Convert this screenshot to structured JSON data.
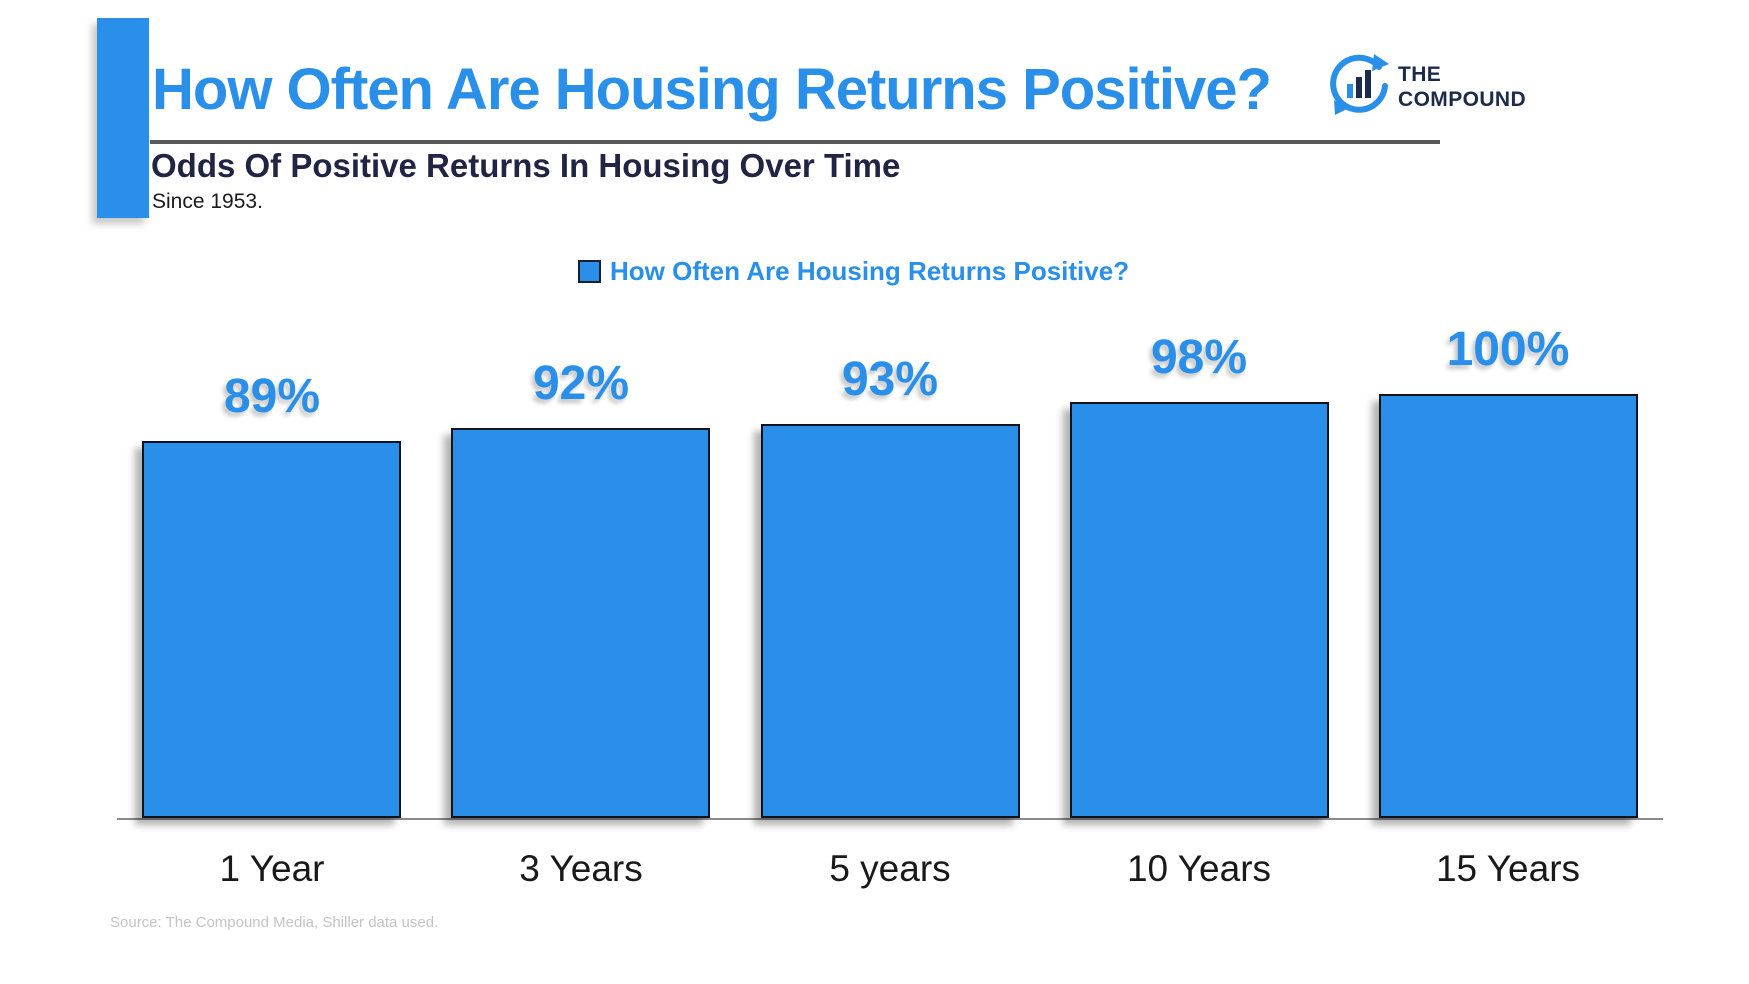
{
  "colors": {
    "accent_blue": "#298fe8",
    "navy": "#212442",
    "logo_navy": "#1c2b4a",
    "bar_border": "#11131c",
    "underline_gray": "#58595b",
    "axis_gray": "#8a8a8a",
    "source_gray": "#c4c4c4"
  },
  "header": {
    "title": "How Often Are Housing Returns Positive?",
    "subtitle": "Odds Of Positive Returns In Housing Over Time",
    "subnote": "Since 1953."
  },
  "logo": {
    "icon": "compound-chart-bubble-icon",
    "line1": "THE",
    "line2": "COMPOUND"
  },
  "legend": {
    "label": "How Often Are Housing Returns Positive?"
  },
  "chart_data": {
    "type": "bar",
    "title": "How Often Are Housing Returns Positive?",
    "categories": [
      "1 Year",
      "3 Years",
      "5 years",
      "10 Years",
      "15 Years"
    ],
    "values": [
      89,
      92,
      93,
      98,
      100
    ],
    "value_labels": [
      "89%",
      "92%",
      "93%",
      "98%",
      "100%"
    ],
    "unit": "%",
    "xlabel": "",
    "ylabel": "",
    "ylim": [
      0,
      100
    ],
    "grid": false,
    "legend_position": "top-center",
    "bar_color": "#298fe8",
    "value_label_color": "#298fe8"
  },
  "footer": {
    "source": "Source: The Compound Media, Shiller data used."
  }
}
